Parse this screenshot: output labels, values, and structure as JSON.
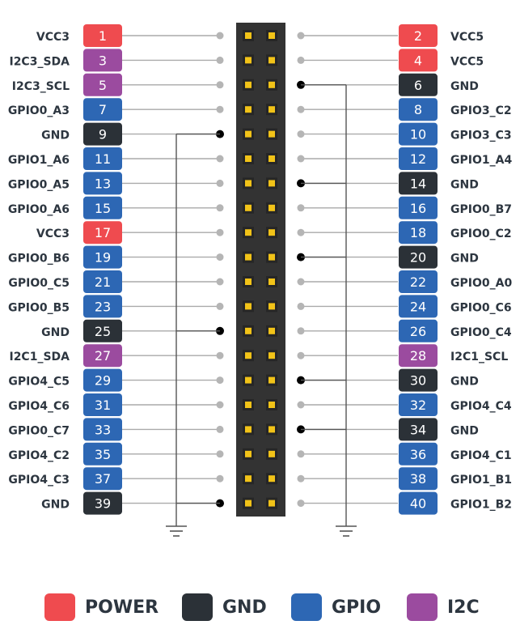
{
  "colors": {
    "power": "#ef4b4f",
    "gnd": "#2b3137",
    "gpio": "#2d67b4",
    "i2c": "#9b4b9f",
    "header": "#333333",
    "pin": "#f2c318",
    "line": "#aaaaaa",
    "text": "#2d3640"
  },
  "pins": [
    {
      "num": "1",
      "label": "VCC3",
      "type": "power"
    },
    {
      "num": "2",
      "label": "VCC5",
      "type": "power"
    },
    {
      "num": "3",
      "label": "I2C3_SDA",
      "type": "i2c"
    },
    {
      "num": "4",
      "label": "VCC5",
      "type": "power"
    },
    {
      "num": "5",
      "label": "I2C3_SCL",
      "type": "i2c"
    },
    {
      "num": "6",
      "label": "GND",
      "type": "gnd"
    },
    {
      "num": "7",
      "label": "GPIO0_A3",
      "type": "gpio"
    },
    {
      "num": "8",
      "label": "GPIO3_C2",
      "type": "gpio"
    },
    {
      "num": "9",
      "label": "GND",
      "type": "gnd"
    },
    {
      "num": "10",
      "label": "GPIO3_C3",
      "type": "gpio"
    },
    {
      "num": "11",
      "label": "GPIO1_A6",
      "type": "gpio"
    },
    {
      "num": "12",
      "label": "GPIO1_A4",
      "type": "gpio"
    },
    {
      "num": "13",
      "label": "GPIO0_A5",
      "type": "gpio"
    },
    {
      "num": "14",
      "label": "GND",
      "type": "gnd"
    },
    {
      "num": "15",
      "label": "GPIO0_A6",
      "type": "gpio"
    },
    {
      "num": "16",
      "label": "GPIO0_B7",
      "type": "gpio"
    },
    {
      "num": "17",
      "label": "VCC3",
      "type": "power"
    },
    {
      "num": "18",
      "label": "GPIO0_C2",
      "type": "gpio"
    },
    {
      "num": "19",
      "label": "GPIO0_B6",
      "type": "gpio"
    },
    {
      "num": "20",
      "label": "GND",
      "type": "gnd"
    },
    {
      "num": "21",
      "label": "GPIO0_C5",
      "type": "gpio"
    },
    {
      "num": "22",
      "label": "GPIO0_A0",
      "type": "gpio"
    },
    {
      "num": "23",
      "label": "GPIO0_B5",
      "type": "gpio"
    },
    {
      "num": "24",
      "label": "GPIO0_C6",
      "type": "gpio"
    },
    {
      "num": "25",
      "label": "GND",
      "type": "gnd"
    },
    {
      "num": "26",
      "label": "GPIO0_C4",
      "type": "gpio"
    },
    {
      "num": "27",
      "label": "I2C1_SDA",
      "type": "i2c"
    },
    {
      "num": "28",
      "label": "I2C1_SCL",
      "type": "i2c"
    },
    {
      "num": "29",
      "label": "GPIO4_C5",
      "type": "gpio"
    },
    {
      "num": "30",
      "label": "GND",
      "type": "gnd"
    },
    {
      "num": "31",
      "label": "GPIO4_C6",
      "type": "gpio"
    },
    {
      "num": "32",
      "label": "GPIO4_C4",
      "type": "gpio"
    },
    {
      "num": "33",
      "label": "GPIO0_C7",
      "type": "gpio"
    },
    {
      "num": "34",
      "label": "GND",
      "type": "gnd"
    },
    {
      "num": "35",
      "label": "GPIO4_C2",
      "type": "gpio"
    },
    {
      "num": "36",
      "label": "GPIO4_C1",
      "type": "gpio"
    },
    {
      "num": "37",
      "label": "GPIO4_C3",
      "type": "gpio"
    },
    {
      "num": "38",
      "label": "GPIO1_B1",
      "type": "gpio"
    },
    {
      "num": "39",
      "label": "GND",
      "type": "gnd"
    },
    {
      "num": "40",
      "label": "GPIO1_B2",
      "type": "gpio"
    }
  ],
  "legend": [
    {
      "label": "POWER",
      "type": "power"
    },
    {
      "label": "GND",
      "type": "gnd"
    },
    {
      "label": "GPIO",
      "type": "gpio"
    },
    {
      "label": "I2C",
      "type": "i2c"
    }
  ]
}
